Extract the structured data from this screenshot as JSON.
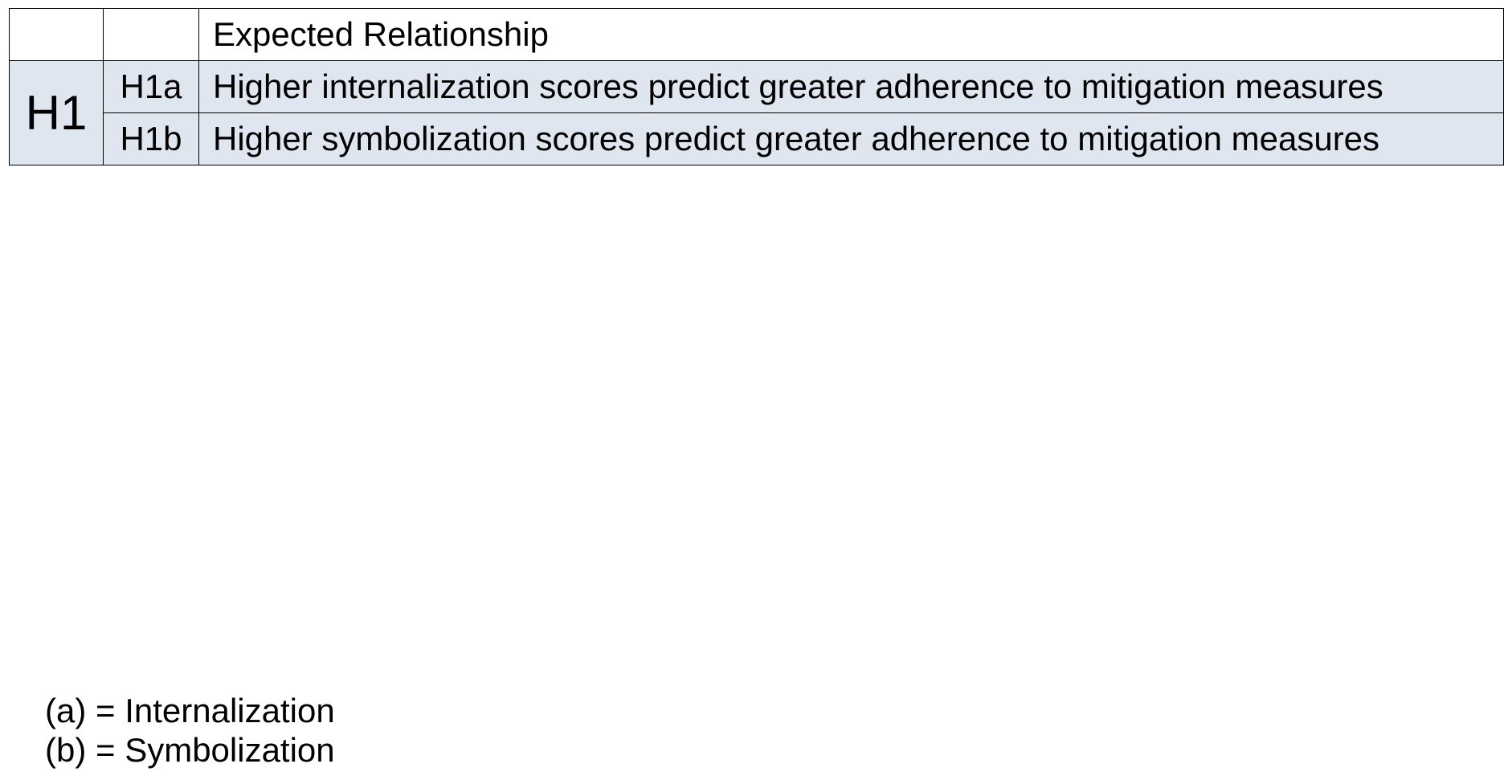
{
  "colors": {
    "row_background": "#dfe6f0",
    "header_background": "#ffffff",
    "border": "#000000"
  },
  "table": {
    "header": {
      "col1": "",
      "col2": "",
      "col3": "Expected Relationship"
    },
    "group_label": "H1",
    "rows": [
      {
        "id": "H1a",
        "text": "Higher internalization scores predict greater adherence to mitigation measures"
      },
      {
        "id": "H1b",
        "text": "Higher symbolization scores predict greater adherence to mitigation measures"
      }
    ]
  },
  "legend": {
    "items": [
      "(a) = Internalization",
      "(b) = Symbolization"
    ]
  }
}
